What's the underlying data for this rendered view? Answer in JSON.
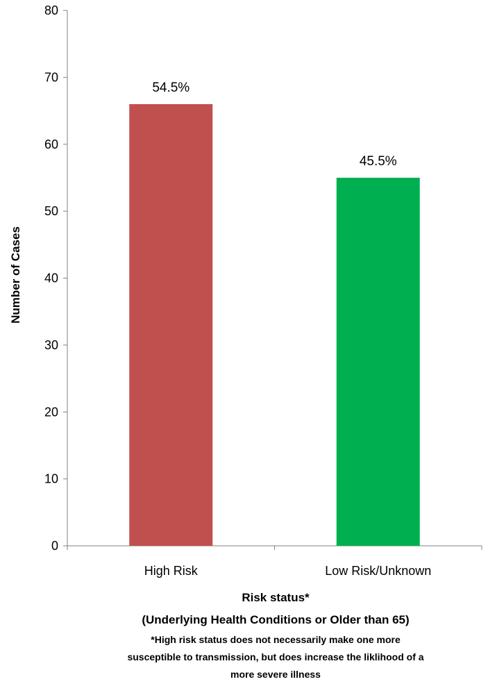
{
  "chart_data": {
    "type": "bar",
    "title": "",
    "categories": [
      "High Risk",
      "Low Risk/Unknown"
    ],
    "values": [
      66,
      55
    ],
    "data_labels": [
      "54.5%",
      "45.5%"
    ],
    "bar_colors": [
      "#c0504d",
      "#00b050"
    ],
    "ylabel": "Number of Cases",
    "xlabel": "Risk status*",
    "xlabel_sub": "(Underlying Health Conditions or Older than 65)",
    "footnote_lines": [
      "*High risk status does not necessarily make one more",
      "susceptible to transmission, but does increase the liklihood of a",
      "more severe illness"
    ],
    "ylim": [
      0,
      80
    ],
    "yticks": [
      0,
      10,
      20,
      30,
      40,
      50,
      60,
      70,
      80
    ],
    "grid": false,
    "legend": "none"
  }
}
